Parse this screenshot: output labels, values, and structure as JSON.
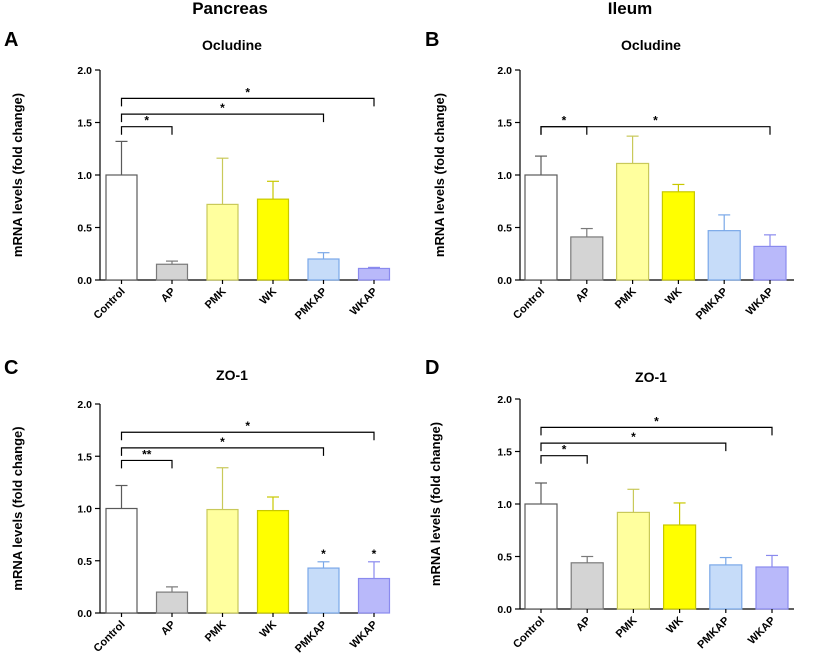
{
  "column_titles": [
    "Pancreas",
    "Ileum"
  ],
  "chart_data": [
    {
      "type": "bar",
      "panel": "A",
      "title": "Ocludine",
      "ylabel": "mRNA levels (fold change)",
      "xlabel": "",
      "ylim": [
        0,
        2.0
      ],
      "yticks": [
        "0.0",
        "0.5",
        "1.0",
        "1.5",
        "2.0"
      ],
      "categories": [
        "Control",
        "AP",
        "PMK",
        "WK",
        "PMKAP",
        "WKAP"
      ],
      "values": [
        1.0,
        0.15,
        0.72,
        0.77,
        0.2,
        0.11
      ],
      "errors": [
        0.32,
        0.03,
        0.44,
        0.17,
        0.06,
        0.01
      ],
      "bar_marks": [
        "",
        "",
        "",
        "",
        "",
        ""
      ],
      "comparisons": [
        {
          "from": 0,
          "to": 1,
          "label": "*"
        },
        {
          "from": 0,
          "to": 4,
          "label": "*"
        },
        {
          "from": 0,
          "to": 5,
          "label": "*"
        }
      ]
    },
    {
      "type": "bar",
      "panel": "B",
      "title": "Ocludine",
      "ylabel": "mRNA levels (fold change)",
      "xlabel": "",
      "ylim": [
        0,
        2.0
      ],
      "yticks": [
        "0.0",
        "0.5",
        "1.0",
        "1.5",
        "2.0"
      ],
      "categories": [
        "Control",
        "AP",
        "PMK",
        "WK",
        "PMKAP",
        "WKAP"
      ],
      "values": [
        1.0,
        0.41,
        1.11,
        0.84,
        0.47,
        0.32
      ],
      "errors": [
        0.18,
        0.08,
        0.26,
        0.07,
        0.15,
        0.11
      ],
      "bar_marks": [
        "",
        "",
        "",
        "",
        "",
        ""
      ],
      "comparisons": [
        {
          "from": 0,
          "to": 1,
          "label": "*"
        },
        {
          "from": 0,
          "to": 5,
          "label": "*"
        }
      ]
    },
    {
      "type": "bar",
      "panel": "C",
      "title": "ZO-1",
      "ylabel": "mRNA levels (fold change)",
      "xlabel": "",
      "ylim": [
        0,
        2.0
      ],
      "yticks": [
        "0.0",
        "0.5",
        "1.0",
        "1.5",
        "2.0"
      ],
      "categories": [
        "Control",
        "AP",
        "PMK",
        "WK",
        "PMKAP",
        "WKAP"
      ],
      "values": [
        1.0,
        0.2,
        0.99,
        0.98,
        0.43,
        0.33
      ],
      "errors": [
        0.22,
        0.05,
        0.4,
        0.13,
        0.06,
        0.16
      ],
      "bar_marks": [
        "",
        "",
        "",
        "",
        "*",
        "*"
      ],
      "comparisons": [
        {
          "from": 0,
          "to": 1,
          "label": "**"
        },
        {
          "from": 0,
          "to": 4,
          "label": "*"
        },
        {
          "from": 0,
          "to": 5,
          "label": "*"
        }
      ]
    },
    {
      "type": "bar",
      "panel": "D",
      "title": "ZO-1",
      "ylabel": "mRNA levels (fold change)",
      "xlabel": "",
      "ylim": [
        0,
        2.0
      ],
      "yticks": [
        "0.0",
        "0.5",
        "1.0",
        "1.5",
        "2.0"
      ],
      "categories": [
        "Control",
        "AP",
        "PMK",
        "WK",
        "PMKAP",
        "WKAP"
      ],
      "values": [
        1.0,
        0.44,
        0.92,
        0.8,
        0.42,
        0.4
      ],
      "errors": [
        0.2,
        0.06,
        0.22,
        0.21,
        0.07,
        0.11
      ],
      "bar_marks": [
        "",
        "",
        "",
        "",
        "",
        ""
      ],
      "comparisons": [
        {
          "from": 0,
          "to": 1,
          "label": "*"
        },
        {
          "from": 0,
          "to": 4,
          "label": "*"
        },
        {
          "from": 0,
          "to": 5,
          "label": "*"
        }
      ]
    }
  ],
  "colors": {
    "fill": [
      "#ffffff",
      "#d4d4d4",
      "#ffff9e",
      "#ffff00",
      "#c6dcf9",
      "#b9b9fa"
    ],
    "stroke": [
      "#5a5a5a",
      "#7a7a7a",
      "#c9c95a",
      "#c8c800",
      "#7aa8e8",
      "#8a8aee"
    ],
    "axis": "#000000"
  }
}
